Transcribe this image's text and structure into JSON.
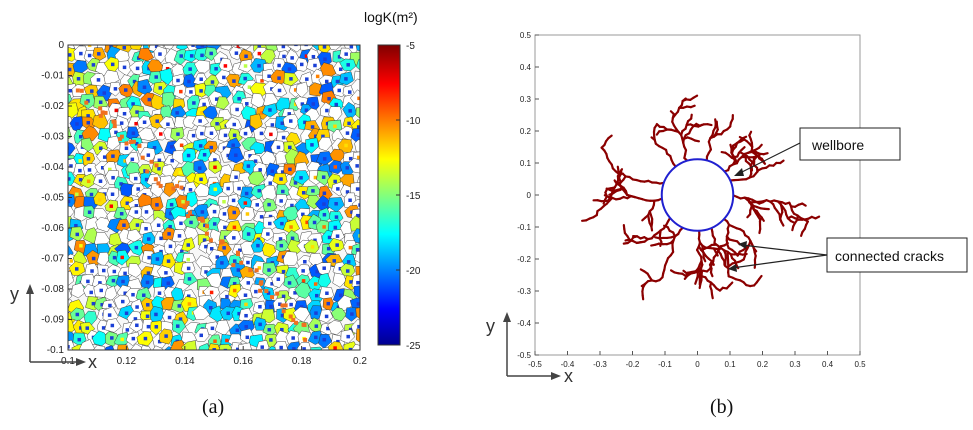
{
  "figure": {
    "panel_a": {
      "caption": "(a)",
      "colorbar_title": "logK(m²)",
      "x_ticks": [
        "0.1",
        "0.12",
        "0.14",
        "0.16",
        "0.18",
        "0.2"
      ],
      "y_ticks": [
        "0",
        "-0.01",
        "-0.02",
        "-0.03",
        "-0.04",
        "-0.05",
        "-0.06",
        "-0.07",
        "-0.08",
        "-0.09",
        "-0.1"
      ],
      "colorbar_ticks": [
        "-5",
        "-10",
        "-15",
        "-20",
        "-25"
      ],
      "axis_x_symbol": "x",
      "axis_y_symbol": "y"
    },
    "panel_b": {
      "caption": "(b)",
      "x_ticks": [
        "-0.5",
        "-0.4",
        "-0.3",
        "-0.2",
        "-0.1",
        "0",
        "0.1",
        "0.2",
        "0.3",
        "0.4",
        "0.5"
      ],
      "y_ticks": [
        "0.5",
        "0.4",
        "0.3",
        "0.2",
        "0.1",
        "0",
        "-0.1",
        "-0.2",
        "-0.3",
        "-0.4",
        "-0.5"
      ],
      "callout_wellbore": "wellbore",
      "callout_cracks": "connected cracks",
      "axis_x_symbol": "x",
      "axis_y_symbol": "y"
    }
  },
  "colors": {
    "mesh_blue": "#1a3fd6",
    "crack_red": "#8b0000",
    "wellbore_blue": "#2020d0"
  },
  "chart_data": [
    {
      "type": "heatmap",
      "title": "",
      "colorbar_label": "logK(m²)",
      "xlim": [
        0.1,
        0.2
      ],
      "ylim": [
        -0.1,
        0
      ],
      "colorbar_range": [
        -25,
        -5
      ],
      "colorbar_ticks": [
        -5,
        -10,
        -15,
        -20,
        -25
      ],
      "colormap": "jet"
    },
    {
      "type": "scatter",
      "title": "",
      "xlim": [
        -0.5,
        0.5
      ],
      "ylim": [
        -0.5,
        0.5
      ],
      "wellbore": {
        "center": [
          0,
          0
        ],
        "radius": 0.11
      },
      "annotations": [
        "wellbore",
        "connected cracks"
      ]
    }
  ]
}
